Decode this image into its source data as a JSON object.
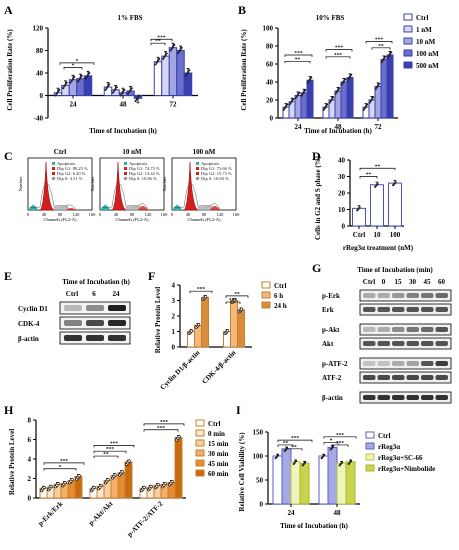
{
  "panels": {
    "A": {
      "letter": "A",
      "title": "1% FBS",
      "ylabel": "Cell Proliferation Rate (%)",
      "xlabel": "Time of Incubation (h)"
    },
    "B": {
      "letter": "B",
      "title": "10% FBS",
      "ylabel": "Cell Proliferation Rate (%)",
      "xlabel": "Time of Incubation (h)"
    },
    "C": {
      "letter": "C",
      "plots": [
        {
          "title": "Ctrl",
          "legend": [
            "Apoptosis",
            "Dip G1: 89.25 %",
            "Dip G2: 6.20 %",
            "Dip S: 4.51 %"
          ]
        },
        {
          "title": "10 nM",
          "legend": [
            "Apoptosis",
            "Dip G1: 74.75 %",
            "Dip G2: 14.42 %",
            "Dip S: 10.86 %"
          ]
        },
        {
          "title": "100 nM",
          "legend": [
            "Apoptosis",
            "Dip G1: 73.66 %",
            "Dip G2: 15.73 %",
            "Dip S: 10.60 %"
          ]
        }
      ],
      "xlabel": "Channels (FL2-A)",
      "ylabel": "Number"
    },
    "D": {
      "letter": "D",
      "ylabel": "Cells in G2 and S phase (%)",
      "xlabel": "rReg3α treatment (nM)"
    },
    "E": {
      "letter": "E",
      "header": "Time of Incubation (h)",
      "cols": [
        "Ctrl",
        "6",
        "24"
      ],
      "rows": [
        "Cyclin D1",
        "CDK-4",
        "β-actin"
      ]
    },
    "F": {
      "letter": "F",
      "ylabel": "Relative Protein Level"
    },
    "G": {
      "letter": "G",
      "header": "Time of Incubation (min)",
      "cols": [
        "Ctrl",
        "0",
        "15",
        "30",
        "45",
        "60"
      ],
      "rows": [
        "p-Erk",
        "Erk",
        "p-Akt",
        "Akt",
        "p-ATF-2",
        "ATF-2",
        "β-actin"
      ]
    },
    "H": {
      "letter": "H",
      "ylabel": "Relative Protein Level"
    },
    "I": {
      "letter": "I",
      "ylabel": "Relative Cell Viability (%)",
      "xlabel": "Time of Incubation (h)"
    }
  },
  "colors": {
    "c1": "#ffffff",
    "c2": "#d4d6f2",
    "c3": "#a3a6e0",
    "c4": "#6a6fcc",
    "c5": "#3a3fb0",
    "orange": "#f5b87a",
    "orange2": "#d98c3a",
    "red": "#d22020",
    "cyan": "#2ab0b0",
    "purple": "#6b3fc0",
    "green": "#c8d44a",
    "black": "#000000"
  },
  "sig": {
    "s1": "*",
    "s2": "**",
    "s3": "***"
  },
  "chart_data": [
    {
      "id": "A",
      "type": "bar",
      "title": "1% FBS",
      "xlabel": "Time of Incubation (h)",
      "ylabel": "Cell Proliferation Rate (%)",
      "categories": [
        "24",
        "48",
        "72"
      ],
      "ylim": [
        -40,
        120
      ],
      "yticks": [
        -40,
        0,
        40,
        80,
        120
      ],
      "series": [
        {
          "name": "Ctrl",
          "values": [
            5,
            15,
            60
          ]
        },
        {
          "name": "1 nM",
          "values": [
            18,
            10,
            70
          ]
        },
        {
          "name": "10 nM",
          "values": [
            28,
            5,
            85
          ]
        },
        {
          "name": "100 nM",
          "values": [
            30,
            8,
            80
          ]
        },
        {
          "name": "500 nM",
          "values": [
            35,
            -5,
            40
          ]
        }
      ]
    },
    {
      "id": "B",
      "type": "bar",
      "title": "10% FBS",
      "xlabel": "Time of Incubation (h)",
      "ylabel": "Cell Proliferation Rate (%)",
      "categories": [
        "24",
        "48",
        "72"
      ],
      "ylim": [
        0,
        100
      ],
      "yticks": [
        0,
        20,
        40,
        60,
        80,
        100
      ],
      "series": [
        {
          "name": "Ctrl",
          "values": [
            12,
            12,
            12
          ]
        },
        {
          "name": "1 nM",
          "values": [
            18,
            20,
            20
          ]
        },
        {
          "name": "10 nM",
          "values": [
            25,
            30,
            35
          ]
        },
        {
          "name": "100 nM",
          "values": [
            28,
            40,
            65
          ]
        },
        {
          "name": "500 nM",
          "values": [
            42,
            45,
            70
          ]
        }
      ]
    },
    {
      "id": "D",
      "type": "bar",
      "xlabel": "rReg3α treatment (nM)",
      "ylabel": "Cells in G2 and S phase (%)",
      "categories": [
        "Ctrl",
        "10",
        "100"
      ],
      "ylim": [
        0,
        40
      ],
      "yticks": [
        0,
        10,
        20,
        30,
        40
      ],
      "series": [
        {
          "name": "",
          "values": [
            10.7,
            25,
            26
          ]
        }
      ]
    },
    {
      "id": "F",
      "type": "bar",
      "ylabel": "Relative Protein Level",
      "categories": [
        "Cyclin D1/β-actin",
        "CDK-4/β-actin"
      ],
      "ylim": [
        0,
        4
      ],
      "yticks": [
        0,
        1,
        2,
        3,
        4
      ],
      "series": [
        {
          "name": "Ctrl",
          "values": [
            1.0,
            1.0
          ]
        },
        {
          "name": "6 h",
          "values": [
            1.4,
            3.0
          ]
        },
        {
          "name": "24 h",
          "values": [
            3.2,
            2.4
          ]
        }
      ]
    },
    {
      "id": "H",
      "type": "bar",
      "ylabel": "Relative Protein Level",
      "categories": [
        "p-Erk/Erk",
        "p-Akt/Akt",
        "p-ATF-2/ATF-2"
      ],
      "ylim": [
        0,
        8
      ],
      "yticks": [
        0,
        2,
        4,
        6,
        8
      ],
      "series": [
        {
          "name": "Ctrl",
          "values": [
            1.0,
            1.0,
            1.0
          ]
        },
        {
          "name": "0 min",
          "values": [
            1.1,
            1.2,
            1.1
          ]
        },
        {
          "name": "15 min",
          "values": [
            1.4,
            1.8,
            1.3
          ]
        },
        {
          "name": "30 min",
          "values": [
            1.5,
            2.3,
            1.4
          ]
        },
        {
          "name": "45 min",
          "values": [
            1.8,
            2.6,
            1.6
          ]
        },
        {
          "name": "60 min",
          "values": [
            2.2,
            3.7,
            6.2
          ]
        }
      ]
    },
    {
      "id": "I",
      "type": "bar",
      "xlabel": "Time of Incubation (h)",
      "ylabel": "Relative Cell Viability (%)",
      "categories": [
        "24",
        "48"
      ],
      "ylim": [
        0,
        150
      ],
      "yticks": [
        0,
        50,
        100,
        150
      ],
      "series": [
        {
          "name": "Ctrl",
          "values": [
            100,
            100
          ]
        },
        {
          "name": "rReg3α",
          "values": [
            115,
            118
          ]
        },
        {
          "name": "rReg3α+SC-66",
          "values": [
            88,
            85
          ]
        },
        {
          "name": "rReg3α+Nimbolide",
          "values": [
            85,
            88
          ]
        }
      ]
    }
  ]
}
